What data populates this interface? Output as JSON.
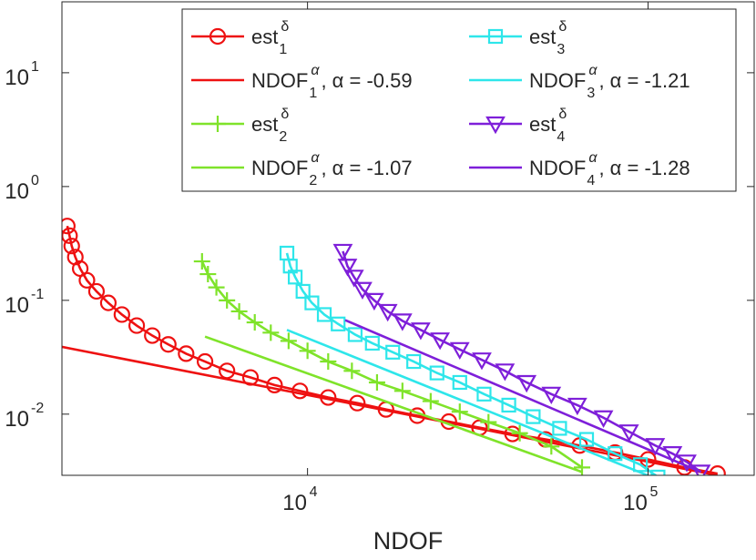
{
  "chart_data": {
    "type": "line",
    "log_x": true,
    "log_y": true,
    "xlabel": "NDOF",
    "xlim": [
      1900,
      205000
    ],
    "ylim": [
      0.0029,
      42
    ],
    "xticks": [
      {
        "value": 10000,
        "label": "10",
        "exponent": "4"
      },
      {
        "value": 100000,
        "label": "10",
        "exponent": "5"
      }
    ],
    "yticks": [
      {
        "value": 0.01,
        "label": "10",
        "exponent": "-2"
      },
      {
        "value": 0.1,
        "label": "10",
        "exponent": "-1"
      },
      {
        "value": 1,
        "label": "10",
        "exponent": "0"
      },
      {
        "value": 10,
        "label": "10",
        "exponent": "1"
      }
    ],
    "legend": "upper right",
    "series": [
      {
        "name": "est",
        "name_sup": "δ",
        "name_sub": "1",
        "color": "#ee1111",
        "marker": "o",
        "x": [
          1970,
          2000,
          2030,
          2080,
          2150,
          2250,
          2400,
          2600,
          2850,
          3150,
          3500,
          3900,
          4400,
          5000,
          5800,
          6800,
          8000,
          9500,
          11500,
          14000,
          17000,
          21000,
          26000,
          32000,
          40000,
          50000,
          63000,
          80000,
          100000,
          128000,
          160000
        ],
        "values": [
          0.45,
          0.37,
          0.3,
          0.24,
          0.19,
          0.15,
          0.12,
          0.095,
          0.075,
          0.06,
          0.049,
          0.041,
          0.034,
          0.029,
          0.024,
          0.021,
          0.018,
          0.016,
          0.014,
          0.0125,
          0.011,
          0.0097,
          0.0086,
          0.0076,
          0.0067,
          0.006,
          0.0053,
          0.0046,
          0.004,
          0.0034,
          0.003
        ]
      },
      {
        "name": "NDOF",
        "name_sup": "α",
        "name_sub": "1",
        "name_suffix": ", α = -0.59",
        "color": "#ee1111",
        "marker": "none",
        "x": [
          1900,
          160000
        ],
        "values": [
          0.039,
          0.0029
        ]
      },
      {
        "name": "est",
        "name_sup": "δ",
        "name_sub": "2",
        "color": "#7fe32a",
        "marker": "+",
        "x": [
          4900,
          5100,
          5400,
          5800,
          6300,
          7000,
          7800,
          8800,
          10000,
          11500,
          13500,
          16000,
          19000,
          23000,
          28000,
          34000,
          42000,
          52000,
          64000
        ],
        "values": [
          0.22,
          0.17,
          0.13,
          0.1,
          0.08,
          0.064,
          0.052,
          0.044,
          0.036,
          0.029,
          0.024,
          0.019,
          0.016,
          0.013,
          0.0105,
          0.0085,
          0.0068,
          0.0052,
          0.0034
        ]
      },
      {
        "name": "NDOF",
        "name_sup": "α",
        "name_sub": "2",
        "name_suffix": ", α = -1.07",
        "color": "#7fe32a",
        "marker": "none",
        "x": [
          5000,
          64000
        ],
        "values": [
          0.048,
          0.0031
        ]
      },
      {
        "name": "est",
        "name_sup": "δ",
        "name_sub": "3",
        "color": "#2ee6ea",
        "marker": "s",
        "x": [
          8700,
          8900,
          9200,
          9700,
          10300,
          11200,
          12300,
          13800,
          15500,
          17800,
          20500,
          24000,
          28000,
          33000,
          39000,
          46000,
          55000,
          66000,
          80000,
          95000,
          107000
        ],
        "values": [
          0.26,
          0.2,
          0.16,
          0.12,
          0.095,
          0.075,
          0.062,
          0.05,
          0.042,
          0.035,
          0.029,
          0.023,
          0.019,
          0.015,
          0.012,
          0.0095,
          0.0075,
          0.006,
          0.0045,
          0.0036,
          0.0028
        ]
      },
      {
        "name": "NDOF",
        "name_sup": "α",
        "name_sub": "3",
        "name_suffix": ", α = -1.21",
        "color": "#2ee6ea",
        "marker": "none",
        "x": [
          8700,
          107000
        ],
        "values": [
          0.055,
          0.00266
        ]
      },
      {
        "name": "est",
        "name_sup": "δ",
        "name_sub": "4",
        "color": "#7e1fd9",
        "marker": "v",
        "x": [
          12700,
          13100,
          13700,
          14500,
          15700,
          17200,
          19000,
          21500,
          24500,
          28000,
          32500,
          38000,
          44000,
          52000,
          62000,
          74000,
          88000,
          105000,
          118000,
          130000,
          143000
        ],
        "values": [
          0.27,
          0.2,
          0.16,
          0.125,
          0.1,
          0.08,
          0.066,
          0.055,
          0.045,
          0.037,
          0.03,
          0.024,
          0.019,
          0.015,
          0.012,
          0.0093,
          0.007,
          0.0053,
          0.0045,
          0.0038,
          0.0031
        ]
      },
      {
        "name": "NDOF",
        "name_sup": "α",
        "name_sub": "4",
        "name_suffix": ", α = -1.28",
        "color": "#7e1fd9",
        "marker": "none",
        "x": [
          12900,
          143000
        ],
        "values": [
          0.067,
          0.0031
        ]
      }
    ]
  }
}
